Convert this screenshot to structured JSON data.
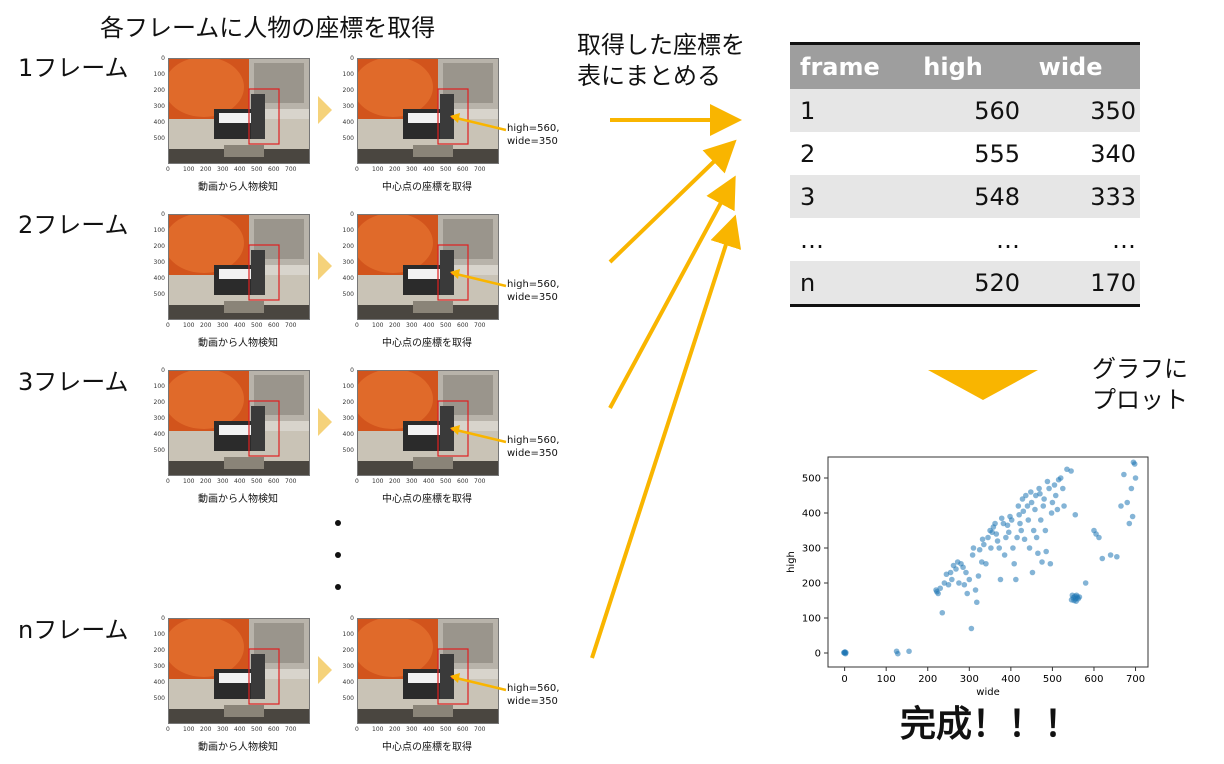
{
  "title": "各フレームに人物の座標を取得",
  "frames": [
    {
      "label": "1フレーム"
    },
    {
      "label": "2フレーム"
    },
    {
      "label": "3フレーム"
    },
    {
      "label": "nフレーム"
    }
  ],
  "panel_left_caption": "動画から人物検知",
  "panel_right_caption": "中心点の座標を取得",
  "annotation_high": "high=560,",
  "annotation_wide": "wide=350",
  "panel_y_ticks": [
    "0",
    "100",
    "200",
    "300",
    "400",
    "500"
  ],
  "panel_x_ticks": [
    "0",
    "100",
    "200",
    "300",
    "400",
    "500",
    "600",
    "700"
  ],
  "ellipsis_dots": 3,
  "table_caption_line1": "取得した座標を",
  "table_caption_line2": "表にまとめる",
  "table": {
    "headers": [
      "frame",
      "high",
      "wide"
    ],
    "rows": [
      [
        "1",
        "560",
        "350"
      ],
      [
        "2",
        "555",
        "340"
      ],
      [
        "3",
        "548",
        "333"
      ],
      [
        "…",
        "…",
        "…"
      ],
      [
        "n",
        "520",
        "170"
      ]
    ]
  },
  "plot_caption_line1": "グラフに",
  "plot_caption_line2": "プロット",
  "chart_data": {
    "type": "scatter",
    "xlabel": "wide",
    "ylabel": "high",
    "xlim": [
      -40,
      730
    ],
    "ylim": [
      -40,
      560
    ],
    "x_ticks": [
      0,
      100,
      200,
      300,
      400,
      500,
      600,
      700
    ],
    "y_ticks": [
      0,
      100,
      200,
      300,
      400,
      500
    ],
    "points": [
      [
        0,
        0
      ],
      [
        0,
        2
      ],
      [
        2,
        -2
      ],
      [
        -2,
        1
      ],
      [
        1,
        3
      ],
      [
        3,
        1
      ],
      [
        125,
        5
      ],
      [
        128,
        -2
      ],
      [
        155,
        5
      ],
      [
        220,
        180
      ],
      [
        222,
        175
      ],
      [
        225,
        170
      ],
      [
        230,
        185
      ],
      [
        235,
        115
      ],
      [
        240,
        200
      ],
      [
        245,
        225
      ],
      [
        250,
        195
      ],
      [
        255,
        230
      ],
      [
        258,
        210
      ],
      [
        262,
        250
      ],
      [
        268,
        240
      ],
      [
        272,
        260
      ],
      [
        275,
        200
      ],
      [
        280,
        255
      ],
      [
        285,
        245
      ],
      [
        288,
        195
      ],
      [
        292,
        230
      ],
      [
        295,
        170
      ],
      [
        300,
        210
      ],
      [
        305,
        70
      ],
      [
        308,
        280
      ],
      [
        310,
        300
      ],
      [
        315,
        180
      ],
      [
        318,
        145
      ],
      [
        322,
        220
      ],
      [
        325,
        295
      ],
      [
        330,
        260
      ],
      [
        332,
        325
      ],
      [
        335,
        310
      ],
      [
        340,
        255
      ],
      [
        345,
        330
      ],
      [
        350,
        350
      ],
      [
        352,
        300
      ],
      [
        355,
        345
      ],
      [
        358,
        360
      ],
      [
        362,
        370
      ],
      [
        365,
        340
      ],
      [
        368,
        320
      ],
      [
        372,
        300
      ],
      [
        375,
        210
      ],
      [
        378,
        385
      ],
      [
        382,
        370
      ],
      [
        385,
        280
      ],
      [
        388,
        330
      ],
      [
        392,
        365
      ],
      [
        395,
        345
      ],
      [
        398,
        390
      ],
      [
        402,
        380
      ],
      [
        405,
        300
      ],
      [
        408,
        255
      ],
      [
        412,
        210
      ],
      [
        415,
        330
      ],
      [
        418,
        420
      ],
      [
        420,
        395
      ],
      [
        422,
        370
      ],
      [
        425,
        350
      ],
      [
        428,
        440
      ],
      [
        430,
        405
      ],
      [
        433,
        325
      ],
      [
        436,
        450
      ],
      [
        440,
        420
      ],
      [
        442,
        380
      ],
      [
        445,
        300
      ],
      [
        448,
        460
      ],
      [
        450,
        430
      ],
      [
        452,
        230
      ],
      [
        455,
        350
      ],
      [
        458,
        410
      ],
      [
        460,
        450
      ],
      [
        462,
        330
      ],
      [
        465,
        285
      ],
      [
        468,
        470
      ],
      [
        470,
        455
      ],
      [
        472,
        380
      ],
      [
        475,
        260
      ],
      [
        478,
        420
      ],
      [
        480,
        440
      ],
      [
        483,
        350
      ],
      [
        485,
        290
      ],
      [
        488,
        490
      ],
      [
        492,
        470
      ],
      [
        495,
        255
      ],
      [
        498,
        400
      ],
      [
        500,
        430
      ],
      [
        505,
        480
      ],
      [
        508,
        450
      ],
      [
        512,
        410
      ],
      [
        515,
        495
      ],
      [
        520,
        500
      ],
      [
        525,
        470
      ],
      [
        528,
        420
      ],
      [
        535,
        525
      ],
      [
        545,
        520
      ],
      [
        555,
        395
      ],
      [
        560,
        160
      ],
      [
        552,
        150
      ],
      [
        548,
        165
      ],
      [
        556,
        155
      ],
      [
        550,
        158
      ],
      [
        558,
        165
      ],
      [
        562,
        155
      ],
      [
        554,
        162
      ],
      [
        546,
        152
      ],
      [
        565,
        160
      ],
      [
        557,
        148
      ],
      [
        580,
        200
      ],
      [
        600,
        350
      ],
      [
        605,
        340
      ],
      [
        612,
        330
      ],
      [
        620,
        270
      ],
      [
        640,
        280
      ],
      [
        655,
        275
      ],
      [
        665,
        420
      ],
      [
        672,
        510
      ],
      [
        680,
        430
      ],
      [
        685,
        370
      ],
      [
        690,
        470
      ],
      [
        695,
        545
      ],
      [
        698,
        540
      ],
      [
        700,
        500
      ],
      [
        693,
        390
      ]
    ]
  },
  "done_text": "完成！！！",
  "colors": {
    "arrow": "#f9b500",
    "chevron": "#f5d27a",
    "scatter": "#1f77b4",
    "table_header": "#9e9e9e",
    "table_shade": "#e6e6e6"
  }
}
